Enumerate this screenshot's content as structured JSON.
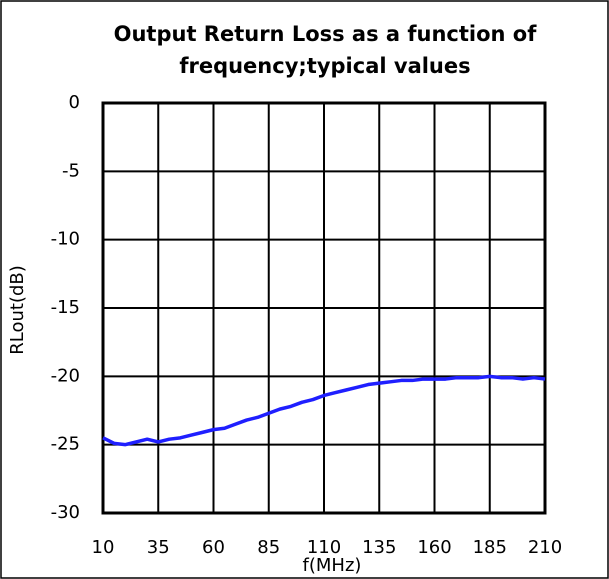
{
  "chart_data": {
    "type": "line",
    "title": "Output Return Loss as a function of frequency;typical values",
    "x_label": "f(MHz)",
    "y_label": "RLout(dB)",
    "x": [
      10,
      15,
      20,
      25,
      30,
      35,
      40,
      45,
      50,
      55,
      60,
      65,
      70,
      75,
      80,
      85,
      90,
      95,
      100,
      105,
      110,
      115,
      120,
      125,
      130,
      135,
      140,
      145,
      150,
      155,
      160,
      165,
      170,
      175,
      180,
      185,
      190,
      195,
      200,
      205,
      210
    ],
    "series": [
      {
        "name": "RLout",
        "color": "#1f1fff",
        "values": [
          -24.5,
          -24.9,
          -25.0,
          -24.8,
          -24.6,
          -24.8,
          -24.6,
          -24.5,
          -24.3,
          -24.1,
          -23.9,
          -23.8,
          -23.5,
          -23.2,
          -23.0,
          -22.7,
          -22.4,
          -22.2,
          -21.9,
          -21.7,
          -21.4,
          -21.2,
          -21.0,
          -20.8,
          -20.6,
          -20.5,
          -20.4,
          -20.3,
          -20.3,
          -20.2,
          -20.2,
          -20.2,
          -20.1,
          -20.1,
          -20.1,
          -20.0,
          -20.1,
          -20.1,
          -20.2,
          -20.1,
          -20.2
        ]
      }
    ],
    "xlim": [
      10,
      210
    ],
    "xticks": [
      10,
      35,
      60,
      85,
      110,
      135,
      160,
      185,
      210
    ],
    "ylim": [
      -30,
      0
    ],
    "yticks": [
      0,
      -5,
      -10,
      -15,
      -20,
      -25,
      -30
    ],
    "grid": true
  }
}
